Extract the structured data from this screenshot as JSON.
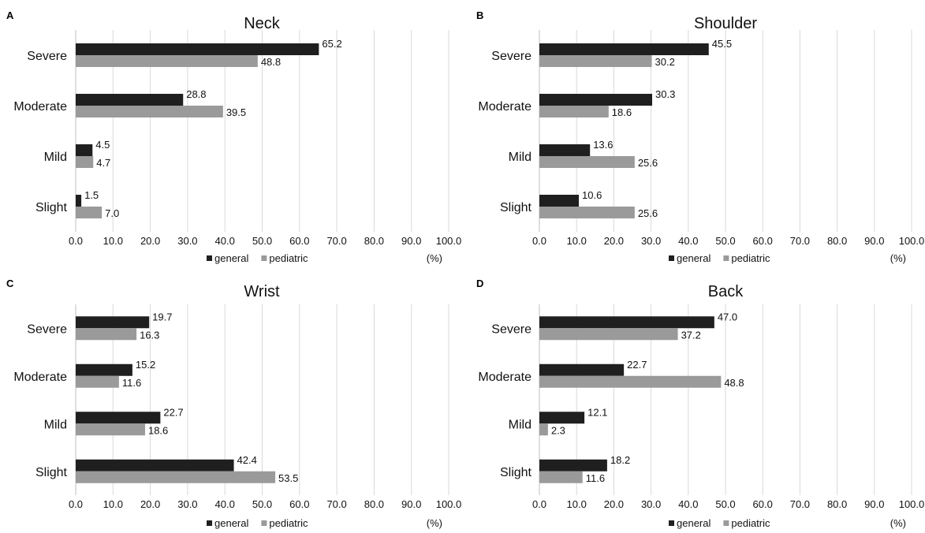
{
  "chart_data": [
    {
      "panel": "A",
      "title": "Neck",
      "type": "bar",
      "orientation": "horizontal",
      "categories": [
        "Severe",
        "Moderate",
        "Mild",
        "Slight"
      ],
      "series": [
        {
          "name": "general",
          "color": "#1f1f1f",
          "values": [
            65.2,
            28.8,
            4.5,
            1.5
          ],
          "labels": [
            "65.2",
            "28.8",
            "4.5",
            "1.5"
          ]
        },
        {
          "name": "pediatric",
          "color": "#9a9a9a",
          "values": [
            48.8,
            39.5,
            4.7,
            7.0
          ],
          "labels": [
            "48.8",
            "39.5",
            "4.7",
            "7.0"
          ]
        }
      ],
      "xlim": [
        0,
        100
      ],
      "xticks": [
        "0.0",
        "10.0",
        "20.0",
        "30.0",
        "40.0",
        "50.0",
        "60.0",
        "70.0",
        "80.0",
        "90.0",
        "100.0"
      ],
      "unit": "(%)",
      "grid": true,
      "legend": "bottom"
    },
    {
      "panel": "B",
      "title": "Shoulder",
      "type": "bar",
      "orientation": "horizontal",
      "categories": [
        "Severe",
        "Moderate",
        "Mild",
        "Slight"
      ],
      "series": [
        {
          "name": "general",
          "color": "#1f1f1f",
          "values": [
            45.5,
            30.3,
            13.6,
            10.6
          ],
          "labels": [
            "45.5",
            "30.3",
            "13.6",
            "10.6"
          ]
        },
        {
          "name": "pediatric",
          "color": "#9a9a9a",
          "values": [
            30.2,
            18.6,
            25.6,
            25.6
          ],
          "labels": [
            "30.2",
            "18.6",
            "25.6",
            "25.6"
          ]
        }
      ],
      "xlim": [
        0,
        100
      ],
      "xticks": [
        "0.0",
        "10.0",
        "20.0",
        "30.0",
        "40.0",
        "50.0",
        "60.0",
        "70.0",
        "80.0",
        "90.0",
        "100.0"
      ],
      "unit": "(%)",
      "grid": true,
      "legend": "bottom"
    },
    {
      "panel": "C",
      "title": "Wrist",
      "type": "bar",
      "orientation": "horizontal",
      "categories": [
        "Severe",
        "Moderate",
        "Mild",
        "Slight"
      ],
      "series": [
        {
          "name": "general",
          "color": "#1f1f1f",
          "values": [
            19.7,
            15.2,
            22.7,
            42.4
          ],
          "labels": [
            "19.7",
            "15.2",
            "22.7",
            "42.4"
          ]
        },
        {
          "name": "pediatric",
          "color": "#9a9a9a",
          "values": [
            16.3,
            11.6,
            18.6,
            53.5
          ],
          "labels": [
            "16.3",
            "11.6",
            "18.6",
            "53.5"
          ]
        }
      ],
      "xlim": [
        0,
        100
      ],
      "xticks": [
        "0.0",
        "10.0",
        "20.0",
        "30.0",
        "40.0",
        "50.0",
        "60.0",
        "70.0",
        "80.0",
        "90.0",
        "100.0"
      ],
      "unit": "(%)",
      "grid": true,
      "legend": "bottom"
    },
    {
      "panel": "D",
      "title": "Back",
      "type": "bar",
      "orientation": "horizontal",
      "categories": [
        "Severe",
        "Moderate",
        "Mild",
        "Slight"
      ],
      "series": [
        {
          "name": "general",
          "color": "#1f1f1f",
          "values": [
            47.0,
            22.7,
            12.1,
            18.2
          ],
          "labels": [
            "47.0",
            "22.7",
            "12.1",
            "18.2"
          ]
        },
        {
          "name": "pediatric",
          "color": "#9a9a9a",
          "values": [
            37.2,
            48.8,
            2.3,
            11.6
          ],
          "labels": [
            "37.2",
            "48.8",
            "2.3",
            "11.6"
          ]
        }
      ],
      "xlim": [
        0,
        100
      ],
      "xticks": [
        "0.0",
        "10.0",
        "20.0",
        "30.0",
        "40.0",
        "50.0",
        "60.0",
        "70.0",
        "80.0",
        "90.0",
        "100.0"
      ],
      "unit": "(%)",
      "grid": true,
      "legend": "bottom"
    }
  ]
}
